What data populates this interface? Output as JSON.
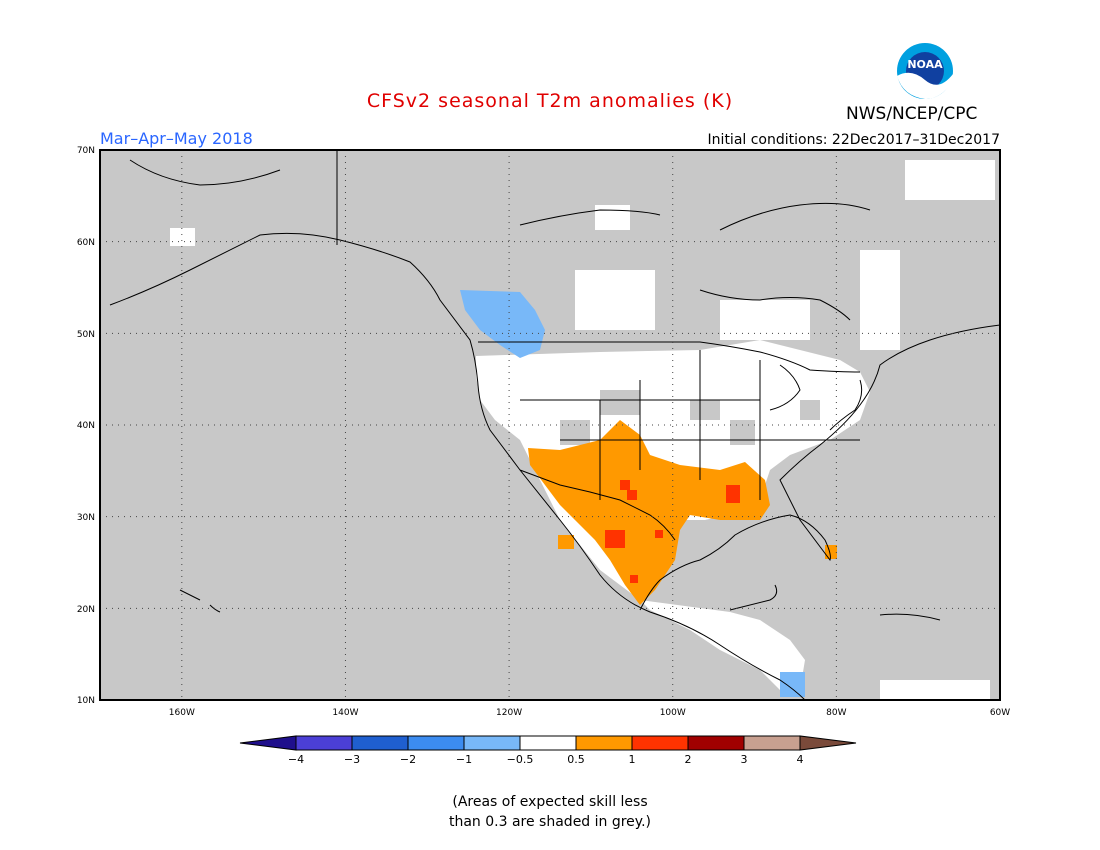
{
  "title": "CFSv2 seasonal T2m anomalies (K)",
  "agency": "NWS/NCEP/CPC",
  "logo_text": "NOAA",
  "season_label": "Mar–Apr–May 2018",
  "init_conditions": "Initial conditions: 22Dec2017–31Dec2017",
  "lat_labels": [
    "70N",
    "60N",
    "50N",
    "40N",
    "30N",
    "20N",
    "10N"
  ],
  "lon_labels": [
    "160W",
    "140W",
    "120W",
    "100W",
    "80W",
    "60W"
  ],
  "colorbar": {
    "ticks": [
      "−4",
      "−3",
      "−2",
      "−1",
      "−0.5",
      "0.5",
      "1",
      "2",
      "3",
      "4"
    ],
    "colors": [
      "#1f0f8c",
      "#4b3fd6",
      "#1f5fd0",
      "#3c8cf0",
      "#78b8f8",
      "#ffffff",
      "#ff9900",
      "#ff3300",
      "#a00000",
      "#c8a090",
      "#7a4a3a"
    ]
  },
  "note_lines": [
    "(Areas of expected skill less",
    "than 0.3 are shaded in grey.)"
  ],
  "colors": {
    "land_low_skill": "#c8c8c8",
    "ocean": "#c8c8c8",
    "neutral": "#ffffff",
    "warm1": "#ff9900",
    "warm2": "#ff3300",
    "cool1": "#78b8f8",
    "title": "#e00000",
    "season": "#2a66ff"
  }
}
